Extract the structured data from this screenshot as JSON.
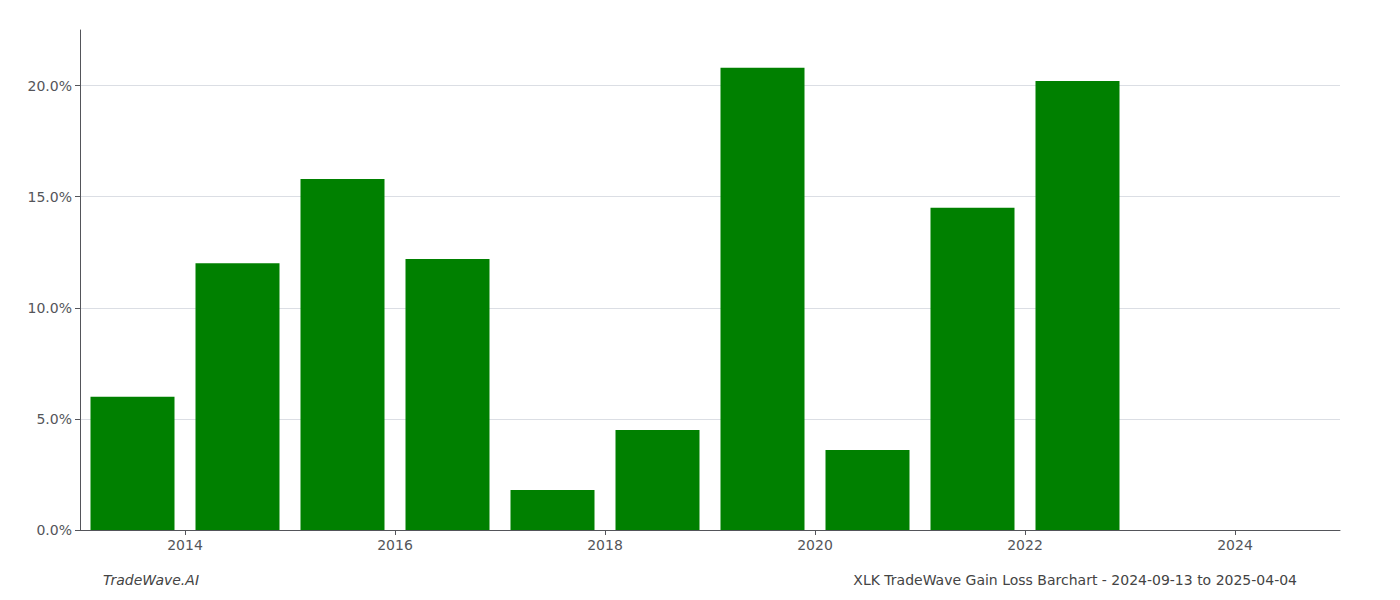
{
  "chart_data": {
    "type": "bar",
    "title": "XLK TradeWave Gain Loss Barchart - 2024-09-13 to 2025-04-04",
    "annotations": [
      "TradeWave.AI"
    ],
    "x": [
      2013.5,
      2014.5,
      2015.5,
      2016.5,
      2017.5,
      2018.5,
      2019.5,
      2020.5,
      2021.5,
      2022.5
    ],
    "values": [
      0.06,
      0.12,
      0.158,
      0.122,
      0.018,
      0.045,
      0.208,
      0.036,
      0.145,
      0.202
    ],
    "color": "#008000",
    "xlim": [
      2013.0,
      2025.0
    ],
    "xticks": [
      2014,
      2016,
      2018,
      2020,
      2022,
      2024
    ],
    "ylim": [
      0,
      0.225
    ],
    "yticks": [
      {
        "value": 0.0,
        "label": "0.0%"
      },
      {
        "value": 0.05,
        "label": "5.0%"
      },
      {
        "value": 0.1,
        "label": "10.0%"
      },
      {
        "value": 0.15,
        "label": "15.0%"
      },
      {
        "value": 0.2,
        "label": "20.0%"
      }
    ],
    "grid": true
  }
}
